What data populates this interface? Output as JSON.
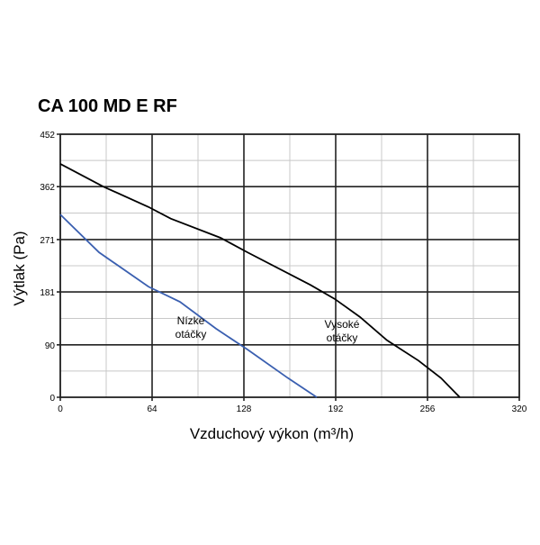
{
  "chart_data": {
    "type": "line",
    "title": "CA 100 MD E RF",
    "x_label": "Vzduchový výkon (m³/h)",
    "y_label": "Výtlak (Pa)",
    "xlim": [
      0,
      320
    ],
    "ylim": [
      0,
      452
    ],
    "xticks": [
      0,
      64,
      128,
      192,
      256,
      320
    ],
    "yticks": [
      0,
      90,
      181,
      271,
      362,
      452
    ],
    "grid": true,
    "minor_grid": true,
    "series": [
      {
        "name": "Vysoké otáčky",
        "label": [
          "Vysoké",
          "otáčky"
        ],
        "color": "#000000",
        "x": [
          0,
          30,
          61.5,
          77,
          111.7,
          130.5,
          174.4,
          191.3,
          208.9,
          227.7,
          249.7,
          265.4,
          278.5
        ],
        "values": [
          401,
          362,
          327,
          307,
          274,
          249,
          193,
          169,
          138,
          98,
          63,
          33,
          0
        ]
      },
      {
        "name": "Nízke otáčky",
        "label": [
          "Nízke",
          "otáčky"
        ],
        "color": "#3a5fb0",
        "x": [
          0,
          27,
          61.5,
          83.4,
          108.5,
          130.5,
          158.7,
          178.8
        ],
        "values": [
          314,
          249,
          190,
          164,
          118,
          82,
          33,
          0
        ]
      }
    ]
  }
}
